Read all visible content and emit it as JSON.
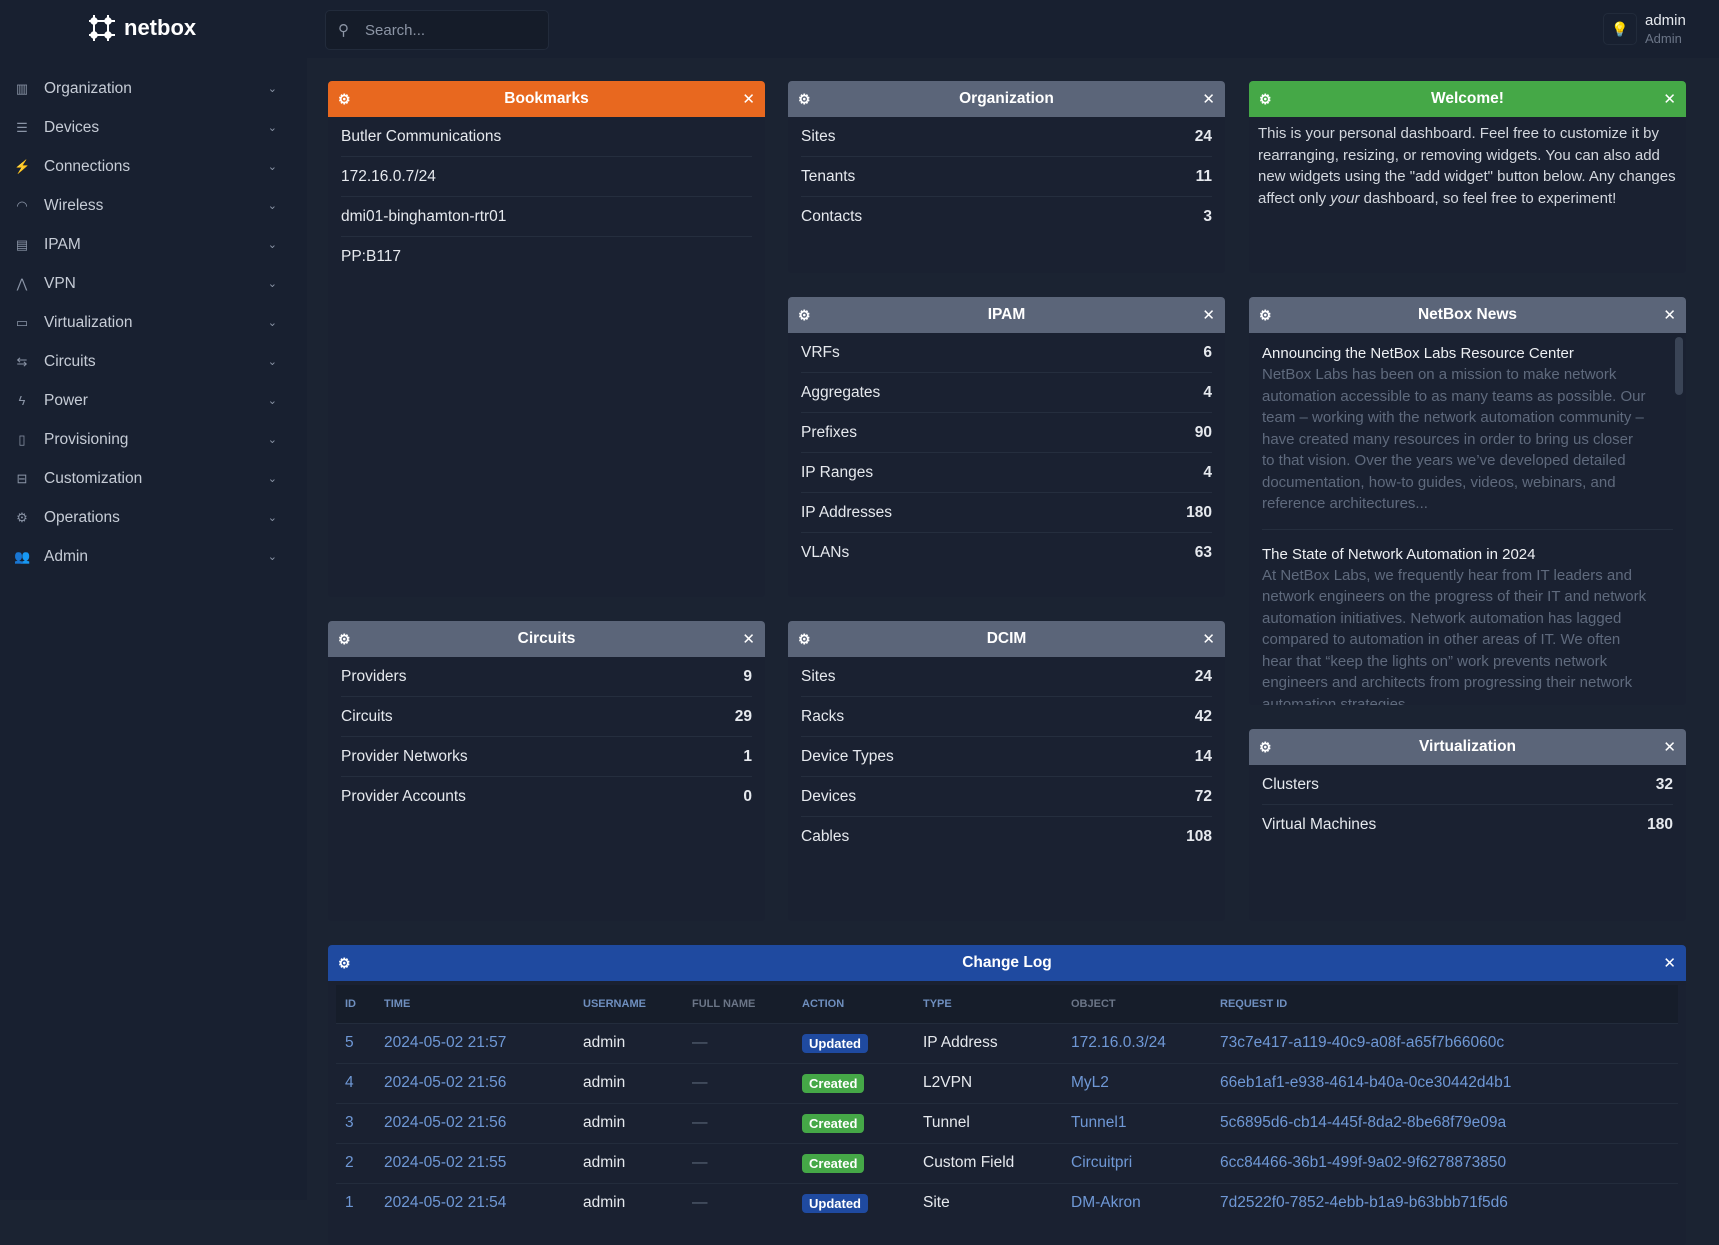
{
  "brand": "netbox",
  "search": {
    "placeholder": "Search..."
  },
  "user": {
    "name": "admin",
    "role": "Admin"
  },
  "sidebar": {
    "items": [
      {
        "label": "Organization",
        "icon": "building-icon"
      },
      {
        "label": "Devices",
        "icon": "server-icon"
      },
      {
        "label": "Connections",
        "icon": "plug-icon"
      },
      {
        "label": "Wireless",
        "icon": "wifi-icon"
      },
      {
        "label": "IPAM",
        "icon": "counter-icon"
      },
      {
        "label": "VPN",
        "icon": "graph-icon"
      },
      {
        "label": "Virtualization",
        "icon": "monitor-icon"
      },
      {
        "label": "Circuits",
        "icon": "transit-icon"
      },
      {
        "label": "Power",
        "icon": "flash-icon"
      },
      {
        "label": "Provisioning",
        "icon": "file-icon"
      },
      {
        "label": "Customization",
        "icon": "toolbox-icon"
      },
      {
        "label": "Operations",
        "icon": "cogs-icon"
      },
      {
        "label": "Admin",
        "icon": "users-icon"
      }
    ]
  },
  "colors": {
    "bookmarks": "#e8681f",
    "welcome": "#45a847",
    "changelog": "#1f4aa0",
    "default": "#5b6579",
    "created": "#45a847",
    "updated": "#1f4aa0"
  },
  "bookmarks": {
    "title": "Bookmarks",
    "items": [
      "Butler Communications",
      "172.16.0.7/24",
      "dmi01-binghamton-rtr01",
      "PP:B117"
    ]
  },
  "organization": {
    "title": "Organization",
    "rows": [
      {
        "label": "Sites",
        "value": "24"
      },
      {
        "label": "Tenants",
        "value": "11"
      },
      {
        "label": "Contacts",
        "value": "3"
      }
    ]
  },
  "welcome": {
    "title": "Welcome!",
    "text_1": "This is your personal dashboard. Feel free to customize it by rearranging, resizing, or removing widgets. You can also add new widgets using the \"add widget\" button below. Any changes affect only ",
    "text_em": "your",
    "text_2": " dashboard, so feel free to experiment!"
  },
  "ipam": {
    "title": "IPAM",
    "rows": [
      {
        "label": "VRFs",
        "value": "6"
      },
      {
        "label": "Aggregates",
        "value": "4"
      },
      {
        "label": "Prefixes",
        "value": "90"
      },
      {
        "label": "IP Ranges",
        "value": "4"
      },
      {
        "label": "IP Addresses",
        "value": "180"
      },
      {
        "label": "VLANs",
        "value": "63"
      }
    ]
  },
  "news": {
    "title": "NetBox News",
    "items": [
      {
        "title": "Announcing the NetBox Labs Resource Center",
        "body": "NetBox Labs has been on a mission to make network automation accessible to as many teams as possible. Our team – working with the network automation community – have created many resources in order to bring us closer to that vision. Over the years we’ve developed detailed documentation, how-to guides, videos, webinars, and reference architectures..."
      },
      {
        "title": "The State of Network Automation in 2024",
        "body": "At NetBox Labs, we frequently hear from IT leaders and network engineers on the progress of their IT and network automation initiatives. Network automation has lagged compared to automation in other areas of IT. We often hear that “keep the lights on” work prevents network engineers and architects from progressing their network automation strategies."
      }
    ]
  },
  "circuits": {
    "title": "Circuits",
    "rows": [
      {
        "label": "Providers",
        "value": "9"
      },
      {
        "label": "Circuits",
        "value": "29"
      },
      {
        "label": "Provider Networks",
        "value": "1"
      },
      {
        "label": "Provider Accounts",
        "value": "0"
      }
    ]
  },
  "dcim": {
    "title": "DCIM",
    "rows": [
      {
        "label": "Sites",
        "value": "24"
      },
      {
        "label": "Racks",
        "value": "42"
      },
      {
        "label": "Device Types",
        "value": "14"
      },
      {
        "label": "Devices",
        "value": "72"
      },
      {
        "label": "Cables",
        "value": "108"
      }
    ]
  },
  "virtualization": {
    "title": "Virtualization",
    "rows": [
      {
        "label": "Clusters",
        "value": "32"
      },
      {
        "label": "Virtual Machines",
        "value": "180"
      }
    ]
  },
  "changelog": {
    "title": "Change Log",
    "columns": [
      "ID",
      "Time",
      "Username",
      "Full Name",
      "Action",
      "Type",
      "Object",
      "Request ID"
    ],
    "rows": [
      [
        "5",
        "2024-05-02 21:57",
        "admin",
        "—",
        "Updated",
        "IP Address",
        "172.16.0.3/24",
        "73c7e417-a119-40c9-a08f-a65f7b66060c"
      ],
      [
        "4",
        "2024-05-02 21:56",
        "admin",
        "—",
        "Created",
        "L2VPN",
        "MyL2",
        "66eb1af1-e938-4614-b40a-0ce30442d4b1"
      ],
      [
        "3",
        "2024-05-02 21:56",
        "admin",
        "—",
        "Created",
        "Tunnel",
        "Tunnel1",
        "5c6895d6-cb14-445f-8da2-8be68f79e09a"
      ],
      [
        "2",
        "2024-05-02 21:55",
        "admin",
        "—",
        "Created",
        "Custom Field",
        "Circuitpri",
        "6cc84466-36b1-499f-9a02-9f6278873850"
      ],
      [
        "1",
        "2024-05-02 21:54",
        "admin",
        "—",
        "Updated",
        "Site",
        "DM-Akron",
        "7d2522f0-7852-4ebb-b1a9-b63bbb71f5d6"
      ]
    ]
  }
}
